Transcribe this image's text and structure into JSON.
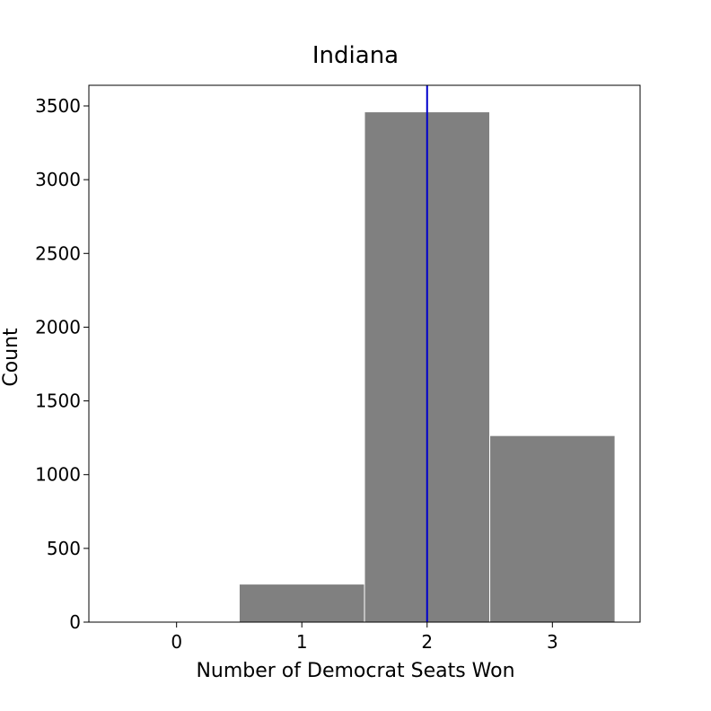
{
  "chart_data": {
    "type": "bar",
    "title": "Indiana",
    "xlabel": "Number of Democrat Seats Won",
    "ylabel": "Count",
    "categories": [
      "0",
      "1",
      "2",
      "3"
    ],
    "x": [
      0,
      1,
      2,
      3
    ],
    "values": [
      0,
      258,
      3460,
      1265
    ],
    "xlim": [
      -0.7,
      3.7
    ],
    "ylim": [
      0,
      3640
    ],
    "yticks": [
      0,
      500,
      1000,
      1500,
      2000,
      2500,
      3000,
      3500
    ],
    "reference_line_x": 2,
    "colors": {
      "bar": "#808080",
      "bar_edge": "#ffffff",
      "reference_line": "#0000cc",
      "frame": "#000000"
    },
    "grid": false,
    "legend": "none"
  }
}
